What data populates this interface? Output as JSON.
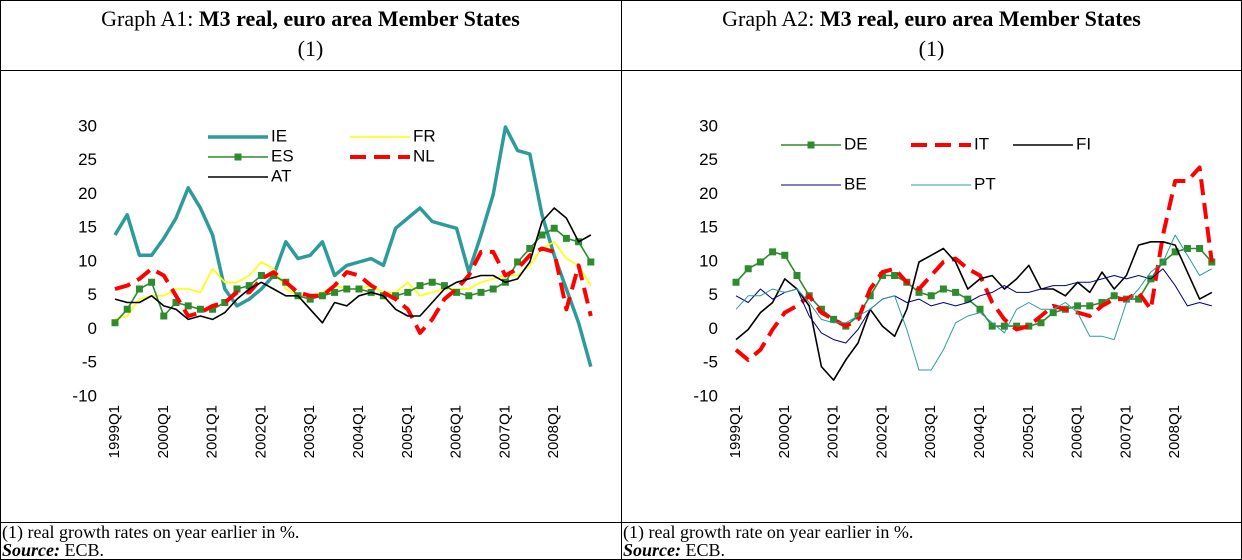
{
  "chart_data": [
    {
      "type": "line",
      "label": "Graph A1:",
      "title": "M3 real, euro area Member States",
      "title_note": "(1)",
      "note": "(1) real growth rates on year earlier in %.",
      "source_label": "Source:",
      "source": "ECB.",
      "categories": [
        "1999Q1",
        null,
        null,
        null,
        "2000Q1",
        null,
        null,
        null,
        "2001Q1",
        null,
        null,
        null,
        "2002Q1",
        null,
        null,
        null,
        "2003Q1",
        null,
        null,
        null,
        "2004Q1",
        null,
        null,
        null,
        "2005Q1",
        null,
        null,
        null,
        "2006Q1",
        null,
        null,
        null,
        "2007Q1",
        null,
        null,
        null,
        "2008Q1",
        null,
        null,
        null
      ],
      "ylim": [
        -10,
        30
      ],
      "yticks": [
        -10,
        -5,
        0,
        5,
        10,
        15,
        20,
        25,
        30
      ],
      "series": [
        {
          "name": "IE",
          "color": "#2e9b9b",
          "values": [
            14,
            17,
            11,
            11,
            13.5,
            16.5,
            21,
            18,
            14,
            6,
            3.5,
            4.5,
            6,
            8,
            13,
            10.5,
            11,
            13,
            8,
            9.5,
            10,
            10.5,
            9.5,
            15,
            16.5,
            18,
            16,
            15.5,
            15,
            8.5,
            14,
            20,
            30,
            26.5,
            26,
            17,
            11,
            6,
            1,
            -5.5
          ]
        },
        {
          "name": "FR",
          "color": "#ffff00",
          "values": [
            1.5,
            2,
            4.5,
            5,
            5,
            6,
            6,
            5.5,
            9,
            7,
            7,
            8,
            10,
            9,
            6,
            5,
            5,
            5.5,
            6.5,
            6,
            6,
            6.5,
            5.5,
            5.5,
            7,
            5,
            5.5,
            6,
            6,
            6,
            7,
            7.5,
            8,
            8,
            9.5,
            12,
            13,
            10.5,
            9.5,
            6.5
          ]
        },
        {
          "name": "ES",
          "color": "#2e8b2e",
          "marker": "square",
          "values": [
            1,
            3,
            6,
            7,
            2,
            4,
            3.5,
            3,
            3,
            4,
            6,
            6.5,
            8,
            8,
            7,
            5,
            4.5,
            5,
            5.5,
            6,
            6,
            5.5,
            5,
            5,
            5.5,
            6.5,
            7,
            6.5,
            5.5,
            5,
            5.5,
            6,
            7,
            10,
            12,
            14,
            15,
            13.5,
            13,
            10
          ]
        },
        {
          "name": "NL",
          "color": "#ff0000",
          "dash": true,
          "values": [
            6,
            6.5,
            7.5,
            9,
            8,
            5,
            2,
            2.5,
            3.5,
            4,
            5.5,
            5.5,
            7.5,
            8.5,
            7,
            5.5,
            5,
            5,
            6.5,
            8.5,
            8,
            6.5,
            5.5,
            4.5,
            3,
            -0.5,
            1.5,
            4.5,
            6,
            8,
            11.5,
            11.5,
            8,
            9,
            11,
            12,
            11.5,
            3,
            9.5,
            2
          ]
        },
        {
          "name": "AT",
          "color": "#000000",
          "values": [
            4.5,
            4,
            4,
            5,
            3.5,
            3,
            1.5,
            2,
            1.5,
            2.5,
            4.5,
            6,
            7,
            6,
            5,
            5,
            3,
            1,
            4,
            3.5,
            5,
            5.5,
            5,
            3,
            2,
            2,
            4,
            6,
            7,
            7.5,
            8,
            8,
            7,
            7.5,
            10,
            16,
            18,
            16.5,
            13,
            14
          ]
        }
      ]
    },
    {
      "type": "line",
      "label": "Graph A2:",
      "title": "M3 real, euro area Member States",
      "title_note": "(1)",
      "note": "(1) real growth rate on year earlier in %.",
      "source_label": "Source:",
      "source": "ECB.",
      "categories": [
        "1999Q1",
        null,
        null,
        null,
        "2000Q1",
        null,
        null,
        null,
        "2001Q1",
        null,
        null,
        null,
        "2002Q1",
        null,
        null,
        null,
        "2003Q1",
        null,
        null,
        null,
        "2004Q1",
        null,
        null,
        null,
        "2005Q1",
        null,
        null,
        null,
        "2006Q1",
        null,
        null,
        null,
        "2007Q1",
        null,
        null,
        null,
        "2008Q1",
        null,
        null,
        null
      ],
      "ylim": [
        -10,
        30
      ],
      "yticks": [
        -10,
        -5,
        0,
        5,
        10,
        15,
        20,
        25,
        30
      ],
      "series": [
        {
          "name": "DE",
          "color": "#2e8b2e",
          "marker": "square",
          "values": [
            7,
            9,
            10,
            11.5,
            11,
            8,
            5,
            3,
            1.5,
            0.5,
            2,
            5,
            8,
            8,
            7,
            5.5,
            5,
            6,
            5.5,
            4.5,
            3,
            0.5,
            0.5,
            0.5,
            0.5,
            1,
            2.5,
            3,
            3.5,
            3.5,
            4,
            5,
            4.5,
            4.5,
            7.5,
            10,
            11.5,
            12,
            12,
            10
          ]
        },
        {
          "name": "IT",
          "color": "#ff0000",
          "dash": true,
          "values": [
            -3,
            -4.5,
            -3,
            0,
            2.5,
            3.5,
            5,
            2.5,
            1.5,
            0.5,
            1.5,
            6,
            8.5,
            9,
            7,
            6,
            8,
            10,
            10.5,
            9,
            8,
            4,
            1.5,
            0,
            0.5,
            2,
            3.5,
            3,
            2.5,
            2,
            3.5,
            4.5,
            4.5,
            5.5,
            3,
            14,
            22,
            22,
            24,
            10
          ]
        },
        {
          "name": "FI",
          "color": "#000000",
          "values": [
            -1.5,
            0,
            2.5,
            4,
            7.5,
            6,
            3.5,
            -5.5,
            -7.5,
            -4.5,
            -2,
            3,
            0.5,
            -1,
            3,
            10,
            11,
            12,
            10,
            6,
            7.5,
            8,
            6,
            7.5,
            9.5,
            6,
            6,
            5,
            7,
            5.5,
            8.5,
            6,
            8,
            12.5,
            13,
            13,
            12.5,
            8.5,
            4.5,
            5.5
          ]
        },
        {
          "name": "BE",
          "color": "#000080",
          "values": [
            5,
            4,
            6,
            4.5,
            5.5,
            6,
            2,
            -0.5,
            -1.5,
            -2,
            0,
            3,
            4.5,
            5,
            4,
            4.5,
            3.5,
            4,
            3.5,
            4,
            5,
            5.5,
            6.5,
            5.5,
            5.5,
            6,
            6.5,
            6.5,
            7,
            7,
            7.5,
            8,
            7.5,
            8,
            7.5,
            9,
            6.5,
            3.5,
            4,
            3.5
          ]
        },
        {
          "name": "PT",
          "color": "#2e9b9b",
          "values": [
            3,
            5,
            5,
            6,
            5.5,
            6,
            4,
            1.5,
            1,
            1,
            2,
            3,
            4.5,
            5,
            0,
            -6,
            -6,
            -3,
            1,
            2,
            2.5,
            1,
            -0.5,
            3,
            4,
            3,
            3,
            4,
            2.5,
            -1,
            -1,
            -1.5,
            4,
            6,
            8.5,
            10,
            14,
            11,
            8,
            9
          ]
        }
      ]
    }
  ]
}
